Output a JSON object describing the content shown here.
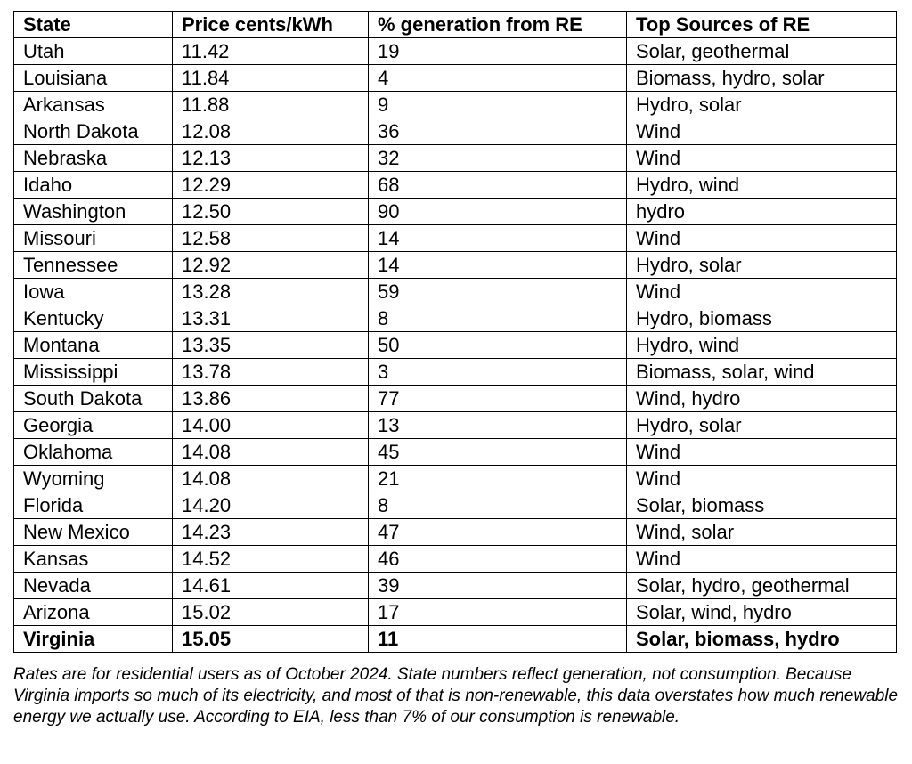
{
  "table": {
    "columns": [
      "State",
      "Price cents/kWh",
      "% generation from RE",
      "Top Sources of RE"
    ],
    "rows": [
      [
        "Utah",
        "11.42",
        "19",
        "Solar, geothermal"
      ],
      [
        "Louisiana",
        "11.84",
        "4",
        "Biomass, hydro, solar"
      ],
      [
        "Arkansas",
        "11.88",
        "9",
        "Hydro, solar"
      ],
      [
        "North Dakota",
        "12.08",
        "36",
        "Wind"
      ],
      [
        "Nebraska",
        "12.13",
        "32",
        "Wind"
      ],
      [
        "Idaho",
        "12.29",
        "68",
        "Hydro, wind"
      ],
      [
        "Washington",
        "12.50",
        "90",
        "hydro"
      ],
      [
        "Missouri",
        "12.58",
        "14",
        "Wind"
      ],
      [
        "Tennessee",
        "12.92",
        "14",
        "Hydro, solar"
      ],
      [
        "Iowa",
        "13.28",
        "59",
        "Wind"
      ],
      [
        "Kentucky",
        "13.31",
        "8",
        "Hydro, biomass"
      ],
      [
        "Montana",
        "13.35",
        "50",
        "Hydro, wind"
      ],
      [
        "Mississippi",
        "13.78",
        "3",
        "Biomass, solar, wind"
      ],
      [
        "South Dakota",
        "13.86",
        "77",
        "Wind, hydro"
      ],
      [
        "Georgia",
        "14.00",
        "13",
        "Hydro, solar"
      ],
      [
        "Oklahoma",
        "14.08",
        "45",
        "Wind"
      ],
      [
        "Wyoming",
        "14.08",
        "21",
        "Wind"
      ],
      [
        "Florida",
        "14.20",
        "8",
        "Solar, biomass"
      ],
      [
        "New Mexico",
        "14.23",
        "47",
        "Wind, solar"
      ],
      [
        "Kansas",
        "14.52",
        "46",
        "Wind"
      ],
      [
        "Nevada",
        "14.61",
        "39",
        "Solar, hydro, geothermal"
      ],
      [
        "Arizona",
        "15.02",
        "17",
        "Solar, wind, hydro"
      ],
      [
        "Virginia",
        "15.05",
        "11",
        "Solar, biomass, hydro"
      ]
    ],
    "footnote": "Rates are for residential users as of October 2024. State numbers reflect generation, not consumption. Because Virginia imports so much of its electricity, and most of that is non-renewable, this data overstates how much renewable energy we actually use. According to EIA, less than 7% of our consumption is renewable."
  }
}
